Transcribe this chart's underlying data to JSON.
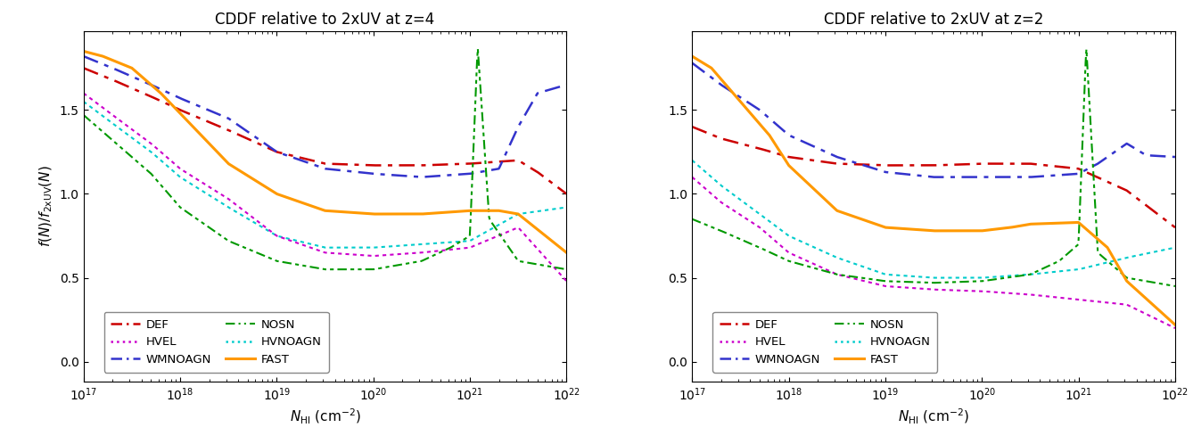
{
  "title_left": "CDDF relative to 2xUV at z=4",
  "title_right": "CDDF relative to 2xUV at z=2",
  "xlabel": "$N_{\\rm HI}$ (cm$^{-2}$)",
  "ylabel": "$f(N) / f_{\\rm 2xUV}(N)$",
  "xlim": [
    1e+17,
    1e+22
  ],
  "ylim": [
    -0.12,
    1.97
  ],
  "yticks": [
    0.0,
    0.5,
    1.0,
    1.5
  ],
  "panel_left": {
    "DEF": {
      "x": [
        17,
        17.3,
        17.7,
        18.0,
        18.5,
        19.0,
        19.5,
        20.0,
        20.5,
        21.0,
        21.5,
        21.7,
        22.0
      ],
      "y": [
        1.75,
        1.68,
        1.58,
        1.5,
        1.38,
        1.25,
        1.18,
        1.17,
        1.17,
        1.18,
        1.2,
        1.13,
        1.0
      ]
    },
    "WMNOAGN": {
      "x": [
        17,
        17.3,
        17.7,
        18.0,
        18.5,
        19.0,
        19.5,
        20.0,
        20.5,
        21.0,
        21.3,
        21.5,
        21.7,
        22.0
      ],
      "y": [
        1.82,
        1.75,
        1.65,
        1.57,
        1.45,
        1.25,
        1.15,
        1.12,
        1.1,
        1.12,
        1.15,
        1.4,
        1.6,
        1.65
      ]
    },
    "HVNOAGN": {
      "x": [
        17,
        17.3,
        17.7,
        18.0,
        18.5,
        19.0,
        19.5,
        20.0,
        20.5,
        21.0,
        21.5,
        22.0
      ],
      "y": [
        1.55,
        1.42,
        1.25,
        1.1,
        0.92,
        0.75,
        0.68,
        0.68,
        0.7,
        0.72,
        0.88,
        0.92
      ]
    },
    "HVEL": {
      "x": [
        17,
        17.3,
        17.7,
        18.0,
        18.5,
        19.0,
        19.5,
        20.0,
        20.5,
        21.0,
        21.5,
        22.0
      ],
      "y": [
        1.6,
        1.47,
        1.3,
        1.15,
        0.97,
        0.75,
        0.65,
        0.63,
        0.65,
        0.68,
        0.8,
        0.48
      ]
    },
    "NOSN": {
      "x": [
        17,
        17.3,
        17.7,
        18.0,
        18.5,
        19.0,
        19.5,
        20.0,
        20.5,
        20.8,
        21.0,
        21.08,
        21.2,
        21.5,
        22.0
      ],
      "y": [
        1.47,
        1.32,
        1.12,
        0.92,
        0.72,
        0.6,
        0.55,
        0.55,
        0.6,
        0.68,
        0.75,
        1.88,
        0.85,
        0.6,
        0.55
      ]
    },
    "FAST": {
      "x": [
        17,
        17.2,
        17.5,
        17.8,
        18.0,
        18.5,
        19.0,
        19.5,
        20.0,
        20.5,
        21.0,
        21.3,
        21.5,
        22.0
      ],
      "y": [
        1.85,
        1.82,
        1.75,
        1.6,
        1.48,
        1.18,
        1.0,
        0.9,
        0.88,
        0.88,
        0.9,
        0.9,
        0.88,
        0.65
      ]
    }
  },
  "panel_right": {
    "DEF": {
      "x": [
        17,
        17.3,
        17.7,
        18.0,
        18.5,
        19.0,
        19.5,
        20.0,
        20.5,
        21.0,
        21.5,
        22.0
      ],
      "y": [
        1.4,
        1.33,
        1.27,
        1.22,
        1.18,
        1.17,
        1.17,
        1.18,
        1.18,
        1.15,
        1.02,
        0.8
      ]
    },
    "WMNOAGN": {
      "x": [
        17,
        17.3,
        17.7,
        18.0,
        18.5,
        19.0,
        19.5,
        20.0,
        20.5,
        21.0,
        21.2,
        21.5,
        21.7,
        22.0
      ],
      "y": [
        1.78,
        1.65,
        1.5,
        1.35,
        1.22,
        1.13,
        1.1,
        1.1,
        1.1,
        1.12,
        1.18,
        1.3,
        1.23,
        1.22
      ]
    },
    "HVNOAGN": {
      "x": [
        17,
        17.3,
        17.7,
        18.0,
        18.5,
        19.0,
        19.5,
        20.0,
        20.5,
        21.0,
        21.5,
        22.0
      ],
      "y": [
        1.2,
        1.05,
        0.88,
        0.75,
        0.62,
        0.52,
        0.5,
        0.5,
        0.52,
        0.55,
        0.62,
        0.68
      ]
    },
    "HVEL": {
      "x": [
        17,
        17.3,
        17.7,
        18.0,
        18.5,
        19.0,
        19.5,
        20.0,
        20.5,
        21.0,
        21.5,
        22.0
      ],
      "y": [
        1.1,
        0.95,
        0.8,
        0.65,
        0.52,
        0.45,
        0.43,
        0.42,
        0.4,
        0.37,
        0.34,
        0.2
      ]
    },
    "NOSN": {
      "x": [
        17,
        17.3,
        17.7,
        18.0,
        18.5,
        19.0,
        19.5,
        20.0,
        20.5,
        20.8,
        21.0,
        21.08,
        21.2,
        21.5,
        22.0
      ],
      "y": [
        0.85,
        0.78,
        0.68,
        0.6,
        0.52,
        0.48,
        0.47,
        0.48,
        0.52,
        0.6,
        0.7,
        1.88,
        0.65,
        0.5,
        0.45
      ]
    },
    "FAST": {
      "x": [
        17,
        17.2,
        17.5,
        17.8,
        18.0,
        18.5,
        19.0,
        19.5,
        20.0,
        20.3,
        20.5,
        21.0,
        21.3,
        21.5,
        22.0
      ],
      "y": [
        1.82,
        1.75,
        1.55,
        1.35,
        1.17,
        0.9,
        0.8,
        0.78,
        0.78,
        0.8,
        0.82,
        0.83,
        0.68,
        0.48,
        0.22
      ]
    }
  }
}
